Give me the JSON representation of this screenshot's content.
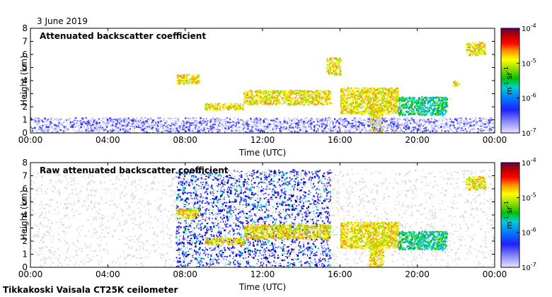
{
  "figure": {
    "date_label": "3 June 2019",
    "footer": "Tikkakoski Vaisala CT25K ceilometer"
  },
  "colors": {
    "scale": [
      "#e6e6e6",
      "#c8c8ff",
      "#3a3aff",
      "#0000c8",
      "#00a0ff",
      "#00e0c0",
      "#00c000",
      "#a0e000",
      "#ffff00",
      "#ff9900",
      "#ff0000",
      "#b00000",
      "#600060"
    ],
    "noise": "#dcdcdc",
    "frame": "#000000"
  },
  "chart_data": [
    {
      "type": "heatmap",
      "title": "Attenuated backscatter coefficient",
      "xlabel": "Time (UTC)",
      "ylabel": "Height (km)",
      "x_ticks": [
        "00:00",
        "04:00",
        "08:00",
        "12:00",
        "16:00",
        "20:00",
        "00:00"
      ],
      "y_ticks": [
        "0",
        "1",
        "2",
        "3",
        "4",
        "5",
        "6",
        "7",
        "8"
      ],
      "xlim_hours": [
        0,
        24
      ],
      "ylim_km": [
        0,
        8
      ],
      "grid": false,
      "colorbar": {
        "scale": "log",
        "ticks": [
          {
            "base": "10",
            "exp": "-4"
          },
          {
            "base": "10",
            "exp": "-5"
          },
          {
            "base": "10",
            "exp": "-6"
          },
          {
            "base": "10",
            "exp": "-7"
          }
        ],
        "unit": {
          "m": "m",
          "m_exp": "-1",
          "sr": "sr",
          "sr_exp": "-1"
        },
        "range": [
          1e-07,
          0.0001
        ]
      },
      "features": [
        {
          "kind": "cloud_layer",
          "t": [
            7.5,
            8.7
          ],
          "h": [
            3.8,
            4.5
          ],
          "level": 1e-05
        },
        {
          "kind": "cloud_layer",
          "t": [
            9.0,
            11.0
          ],
          "h": [
            1.8,
            2.3
          ],
          "level": 1e-05
        },
        {
          "kind": "cloud_layer",
          "t": [
            11.0,
            15.5
          ],
          "h": [
            2.2,
            3.3
          ],
          "level": 1e-05
        },
        {
          "kind": "cloud_layer",
          "t": [
            15.3,
            16.0
          ],
          "h": [
            4.5,
            5.8
          ],
          "level": 1e-05
        },
        {
          "kind": "cloud_layer",
          "t": [
            16.0,
            19.0
          ],
          "h": [
            1.5,
            3.5
          ],
          "level": 1e-05
        },
        {
          "kind": "cloud_layer",
          "t": [
            19.0,
            21.5
          ],
          "h": [
            1.4,
            2.8
          ],
          "level": 2e-06
        },
        {
          "kind": "cloud_layer",
          "t": [
            21.8,
            22.2
          ],
          "h": [
            3.6,
            4.0
          ],
          "level": 1e-05
        },
        {
          "kind": "cloud_layer",
          "t": [
            22.5,
            23.5
          ],
          "h": [
            6.0,
            7.0
          ],
          "level": 1e-05
        },
        {
          "kind": "precip",
          "t": [
            17.5,
            18.2
          ],
          "h": [
            0.0,
            2.0
          ],
          "level": 1e-05
        },
        {
          "kind": "boundary_layer",
          "t": [
            0,
            24
          ],
          "h": [
            0.0,
            1.2
          ],
          "level": 3e-07
        }
      ]
    },
    {
      "type": "heatmap",
      "title": "Raw attenuated backscatter coefficient",
      "xlabel": "Time (UTC)",
      "ylabel": "Height (km)",
      "x_ticks": [
        "00:00",
        "04:00",
        "08:00",
        "12:00",
        "16:00",
        "20:00",
        "00:00"
      ],
      "y_ticks": [
        "0",
        "1",
        "2",
        "3",
        "4",
        "5",
        "6",
        "7",
        "8"
      ],
      "xlim_hours": [
        0,
        24
      ],
      "ylim_km": [
        0,
        8
      ],
      "grid": false,
      "colorbar": {
        "scale": "log",
        "ticks": [
          {
            "base": "10",
            "exp": "-4"
          },
          {
            "base": "10",
            "exp": "-5"
          },
          {
            "base": "10",
            "exp": "-6"
          },
          {
            "base": "10",
            "exp": "-7"
          }
        ],
        "unit": {
          "m": "m",
          "m_exp": "-1",
          "sr": "sr",
          "sr_exp": "-1"
        },
        "range": [
          1e-07,
          0.0001
        ]
      },
      "features": [
        {
          "kind": "noise_field",
          "t": [
            0,
            24
          ],
          "h": [
            0,
            7.5
          ],
          "level": 1e-07
        },
        {
          "kind": "noise_field",
          "t": [
            7.5,
            15.5
          ],
          "h": [
            0,
            7.5
          ],
          "level": 3e-07
        },
        {
          "kind": "cloud_layer",
          "t": [
            7.5,
            8.7
          ],
          "h": [
            3.8,
            4.5
          ],
          "level": 1e-05
        },
        {
          "kind": "cloud_layer",
          "t": [
            9.0,
            11.0
          ],
          "h": [
            1.8,
            2.3
          ],
          "level": 1e-05
        },
        {
          "kind": "cloud_layer",
          "t": [
            11.0,
            15.5
          ],
          "h": [
            2.2,
            3.3
          ],
          "level": 1e-05
        },
        {
          "kind": "cloud_layer",
          "t": [
            16.0,
            19.0
          ],
          "h": [
            1.5,
            3.5
          ],
          "level": 1e-05
        },
        {
          "kind": "cloud_layer",
          "t": [
            19.0,
            21.5
          ],
          "h": [
            1.4,
            2.8
          ],
          "level": 2e-06
        },
        {
          "kind": "cloud_layer",
          "t": [
            22.5,
            23.5
          ],
          "h": [
            6.0,
            7.0
          ],
          "level": 1e-05
        },
        {
          "kind": "precip",
          "t": [
            17.5,
            18.2
          ],
          "h": [
            0.0,
            2.0
          ],
          "level": 1e-05
        }
      ]
    }
  ]
}
